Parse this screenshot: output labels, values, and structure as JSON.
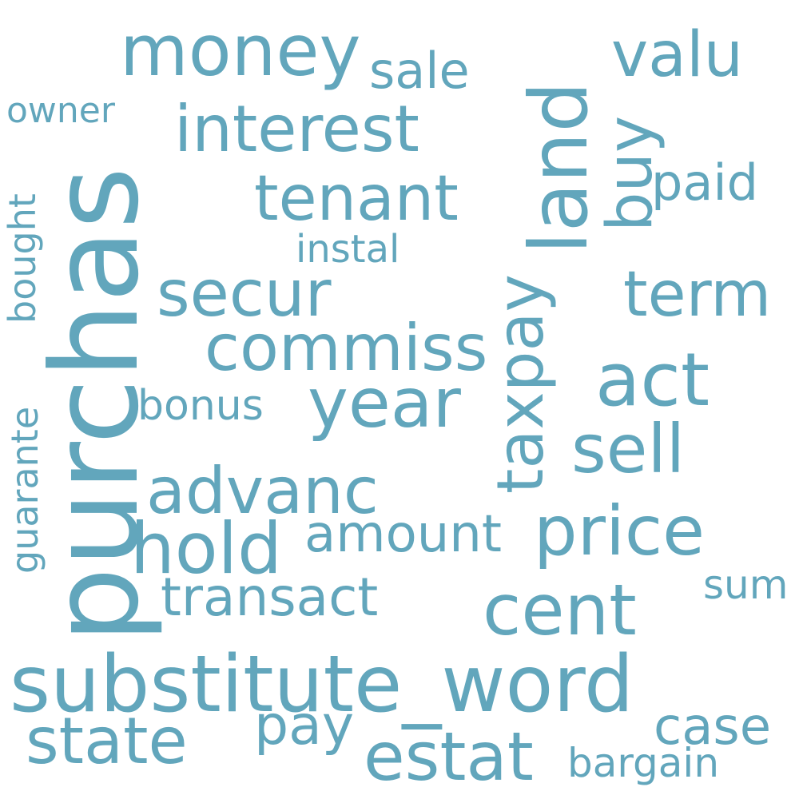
{
  "color": "#62a6bc",
  "words": {
    "purchas": "purchas",
    "substitute_word": "substitute_word",
    "money": "money",
    "interest": "interest",
    "tenant": "tenant",
    "land": "land",
    "valu": "valu",
    "sale": "sale",
    "buy": "buy",
    "paid": "paid",
    "owner": "owner",
    "bought": "bought",
    "guarante": "guarante",
    "instal": "instal",
    "secur": "secur",
    "term": "term",
    "commiss": "commiss",
    "taxpay": "taxpay",
    "act": "act",
    "year": "year",
    "bonus": "bonus",
    "sell": "sell",
    "advanc": "advanc",
    "price": "price",
    "amount": "amount",
    "hold": "hold",
    "transact": "transact",
    "cent": "cent",
    "sum": "sum",
    "state": "state",
    "pay": "pay",
    "estat": "estat",
    "case": "case",
    "bargain": "bargain"
  }
}
